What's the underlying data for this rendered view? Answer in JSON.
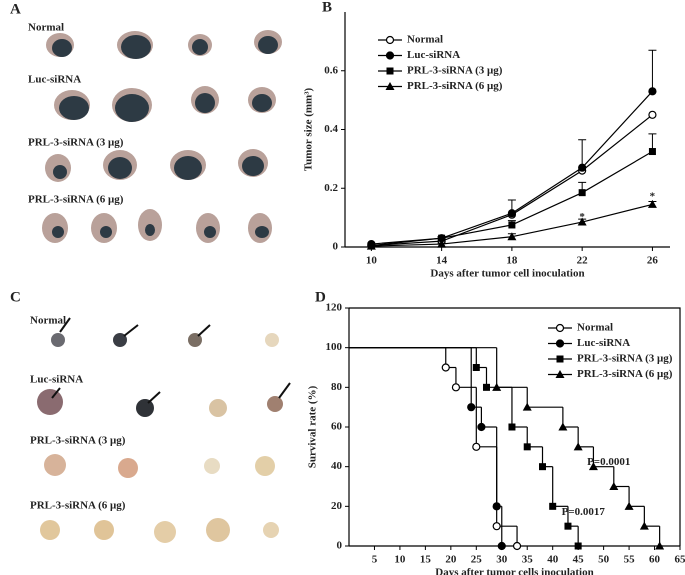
{
  "panels": [
    {
      "letter": "A",
      "rows": [
        "Normal",
        "Luc-siRNA",
        "PRL-3-siRNA (3 μg)",
        "PRL-3-siRNA (6 μg)"
      ]
    },
    {
      "letter": "C",
      "rows": [
        "Normal",
        "Luc-siRNA",
        "PRL-3-siRNA (3 μg)",
        "PRL-3-siRNA (6 μg)"
      ]
    }
  ],
  "chart_data": [
    {
      "type": "line",
      "panel": "B",
      "xlabel": "Days after tumor cell inoculation",
      "ylabel": "Tumor size (mm³)",
      "x": [
        10,
        14,
        18,
        22,
        26
      ],
      "xlim": [
        8.5,
        27
      ],
      "xticks": [
        10,
        14,
        18,
        22,
        26
      ],
      "ylim": [
        0,
        0.8
      ],
      "yticks": [
        0,
        0.2,
        0.4,
        0.6
      ],
      "legend": "upper left",
      "frame": false,
      "series": [
        {
          "name": "Normal",
          "color": "#000000",
          "marker": "open-circle",
          "values": [
            0.005,
            0.02,
            0.11,
            0.26,
            0.45
          ]
        },
        {
          "name": "Luc-siRNA",
          "color": "#000000",
          "marker": "circle",
          "values": [
            0.01,
            0.03,
            0.115,
            0.27,
            0.53
          ],
          "errors": [
            0,
            0.005,
            0.045,
            0.095,
            0.14
          ]
        },
        {
          "name": "PRL-3-siRNA (3 μg)",
          "color": "#000000",
          "marker": "square",
          "values": [
            0.005,
            0.03,
            0.075,
            0.185,
            0.325
          ],
          "errors": [
            0,
            0.005,
            0.015,
            0.035,
            0.06
          ]
        },
        {
          "name": "PRL-3-siRNA (6 μg)",
          "color": "#000000",
          "marker": "triangle",
          "values": [
            0.003,
            0.01,
            0.035,
            0.085,
            0.145
          ],
          "errors": [
            0,
            0.003,
            0.01,
            0.01,
            0.01
          ]
        }
      ],
      "annotations": [
        {
          "text": "*",
          "x": 22,
          "y": 0.1
        },
        {
          "text": "*",
          "x": 26,
          "y": 0.17
        }
      ]
    },
    {
      "type": "step",
      "panel": "D",
      "xlabel": "Days after tumor cells inoculation",
      "ylabel": "Survival rate (%)",
      "xlim": [
        0,
        65
      ],
      "xticks": [
        5,
        10,
        15,
        20,
        25,
        30,
        35,
        40,
        45,
        50,
        55,
        60,
        65
      ],
      "ylim": [
        0,
        120
      ],
      "yticks": [
        0,
        20,
        40,
        60,
        80,
        100,
        120
      ],
      "legend": "upper right",
      "frame": true,
      "series": [
        {
          "name": "Normal",
          "color": "#000000",
          "marker": "open-circle",
          "x": [
            0,
            19,
            21,
            25,
            29,
            33
          ],
          "values": [
            100,
            90,
            80,
            50,
            10,
            0
          ]
        },
        {
          "name": "Luc-siRNA",
          "color": "#000000",
          "marker": "circle",
          "x": [
            0,
            24,
            26,
            29,
            30
          ],
          "values": [
            100,
            70,
            60,
            20,
            0
          ]
        },
        {
          "name": "PRL-3-siRNA (3 μg)",
          "color": "#000000",
          "marker": "square",
          "x": [
            0,
            25,
            27,
            32,
            35,
            38,
            40,
            43,
            45
          ],
          "values": [
            100,
            90,
            80,
            60,
            50,
            40,
            20,
            10,
            0
          ]
        },
        {
          "name": "PRL-3-siRNA (6 μg)",
          "color": "#000000",
          "marker": "triangle",
          "x": [
            0,
            29,
            35,
            42,
            45,
            48,
            52,
            55,
            58,
            61
          ],
          "values": [
            100,
            80,
            70,
            60,
            50,
            40,
            30,
            20,
            10,
            0
          ]
        }
      ],
      "annotations": [
        {
          "text": "P=0.0001",
          "x": 51,
          "y": 42
        },
        {
          "text": "P=0.0017",
          "x": 46,
          "y": 17
        }
      ]
    }
  ]
}
